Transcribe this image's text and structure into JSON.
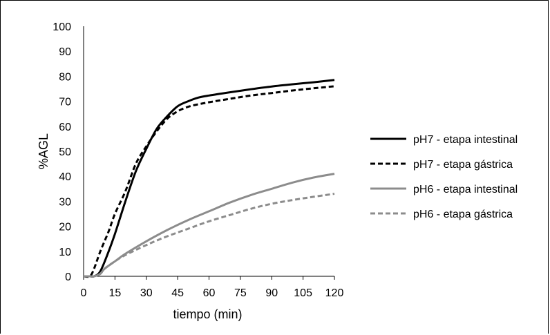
{
  "chart_data": {
    "type": "line",
    "title": "",
    "xlabel": "tiempo (min)",
    "ylabel": "%AGL",
    "xlim": [
      0,
      120
    ],
    "ylim": [
      0,
      100
    ],
    "xticks": [
      0,
      15,
      30,
      45,
      60,
      75,
      90,
      105,
      120
    ],
    "yticks": [
      0,
      10,
      20,
      30,
      40,
      50,
      60,
      70,
      80,
      90,
      100
    ],
    "grid": false,
    "legend_position": "right",
    "series": [
      {
        "name": "pH7 - etapa intestinal",
        "color": "#000000",
        "dash": "solid",
        "x": [
          0,
          3,
          5,
          8,
          12,
          15,
          20,
          25,
          30,
          35,
          40,
          45,
          50,
          55,
          60,
          70,
          80,
          90,
          100,
          110,
          120
        ],
        "y": [
          0,
          0,
          0,
          2,
          10,
          17,
          30,
          42,
          51,
          59,
          64,
          68,
          70,
          71.5,
          72.3,
          73.6,
          74.8,
          75.9,
          76.8,
          77.6,
          78.5
        ]
      },
      {
        "name": "pH7 - etapa gástrica",
        "color": "#000000",
        "dash": "dashed",
        "x": [
          0,
          3,
          5,
          8,
          12,
          15,
          20,
          25,
          30,
          35,
          40,
          45,
          50,
          55,
          60,
          70,
          80,
          90,
          100,
          110,
          120
        ],
        "y": [
          0,
          0,
          3,
          10,
          18,
          25,
          34,
          45,
          52,
          58,
          63,
          66,
          67.8,
          68.8,
          69.6,
          71,
          72.3,
          73.3,
          74.3,
          75.2,
          76
        ]
      },
      {
        "name": "pH6 - etapa intestinal",
        "color": "#8c8c8c",
        "dash": "solid",
        "x": [
          0,
          3,
          5,
          8,
          10,
          15,
          20,
          30,
          40,
          50,
          60,
          70,
          80,
          90,
          100,
          110,
          120
        ],
        "y": [
          0,
          0,
          0,
          1,
          3,
          6,
          9,
          14,
          18.5,
          22.5,
          26,
          29.5,
          32.5,
          35,
          37.5,
          39.5,
          41
        ]
      },
      {
        "name": "pH6 - etapa gástrica",
        "color": "#8c8c8c",
        "dash": "dashed",
        "x": [
          0,
          3,
          5,
          8,
          10,
          15,
          20,
          30,
          40,
          50,
          60,
          70,
          80,
          90,
          100,
          110,
          120
        ],
        "y": [
          0,
          0,
          0,
          1,
          3,
          6,
          8.5,
          12.5,
          16,
          19,
          22,
          24.5,
          27,
          29,
          30.5,
          31.8,
          33
        ]
      }
    ]
  }
}
